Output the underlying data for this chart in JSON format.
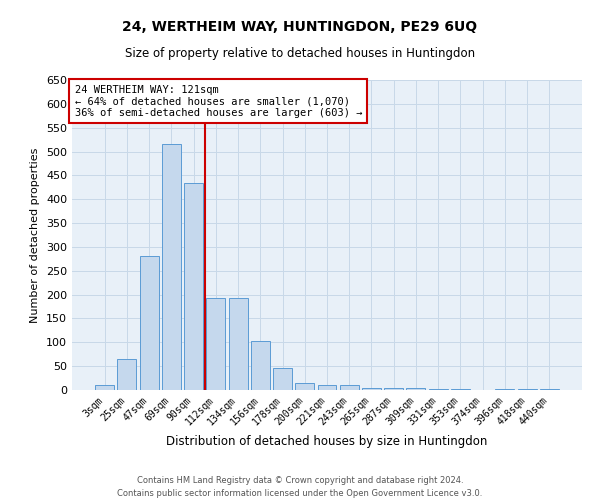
{
  "title": "24, WERTHEIM WAY, HUNTINGDON, PE29 6UQ",
  "subtitle": "Size of property relative to detached houses in Huntingdon",
  "xlabel": "Distribution of detached houses by size in Huntingdon",
  "ylabel": "Number of detached properties",
  "footer_line1": "Contains HM Land Registry data © Crown copyright and database right 2024.",
  "footer_line2": "Contains public sector information licensed under the Open Government Licence v3.0.",
  "bar_labels": [
    "3sqm",
    "25sqm",
    "47sqm",
    "69sqm",
    "90sqm",
    "112sqm",
    "134sqm",
    "156sqm",
    "178sqm",
    "200sqm",
    "221sqm",
    "243sqm",
    "265sqm",
    "287sqm",
    "309sqm",
    "331sqm",
    "353sqm",
    "374sqm",
    "396sqm",
    "418sqm",
    "440sqm"
  ],
  "bar_values": [
    10,
    65,
    280,
    515,
    435,
    192,
    192,
    102,
    47,
    15,
    11,
    11,
    4,
    5,
    5,
    3,
    2,
    0,
    3,
    2,
    2
  ],
  "bar_color": "#c5d8ed",
  "bar_edge_color": "#5b9bd5",
  "grid_color": "#c8d8e8",
  "background_color": "#e8f0f8",
  "vline_x": 4.5,
  "vline_color": "#cc0000",
  "annotation_text": "24 WERTHEIM WAY: 121sqm\n← 64% of detached houses are smaller (1,070)\n36% of semi-detached houses are larger (603) →",
  "annotation_box_color": "#ffffff",
  "annotation_box_edge_color": "#cc0000",
  "ylim": [
    0,
    650
  ],
  "yticks": [
    0,
    50,
    100,
    150,
    200,
    250,
    300,
    350,
    400,
    450,
    500,
    550,
    600,
    650
  ]
}
